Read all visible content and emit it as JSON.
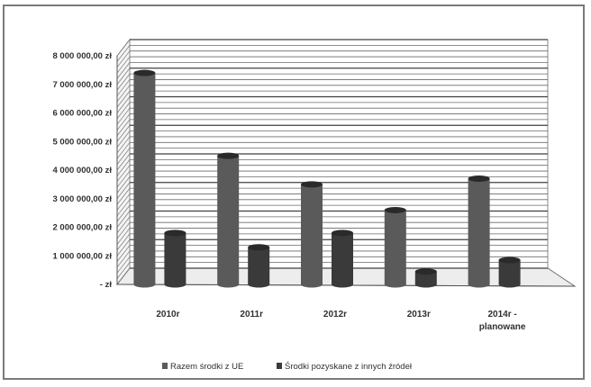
{
  "chart_data": {
    "type": "bar",
    "categories": [
      [
        "2010r"
      ],
      [
        "2011r"
      ],
      [
        "2012r"
      ],
      [
        "2013r"
      ],
      [
        "2014r -",
        "planowane"
      ]
    ],
    "series": [
      {
        "name": "Razem środki z UE",
        "values": [
          7400000,
          4500000,
          3500000,
          2600000,
          3700000
        ],
        "color": "#5a5a5a"
      },
      {
        "name": "Środki pozyskane z innych źródeł",
        "values": [
          1800000,
          1300000,
          1800000,
          450000,
          850000
        ],
        "color": "#3a3a3a"
      }
    ],
    "ylim": [
      0,
      8000000
    ],
    "y_ticks": [
      "- zł",
      "1 000 000,00 zł",
      "2 000 000,00 zł",
      "3 000 000,00 zł",
      "4 000 000,00 zł",
      "5 000 000,00 zł",
      "6 000 000,00 zł",
      "7 000 000,00 zł",
      "8 000 000,00 zł"
    ],
    "grid": true,
    "legend_position": "bottom",
    "three_d": true
  }
}
